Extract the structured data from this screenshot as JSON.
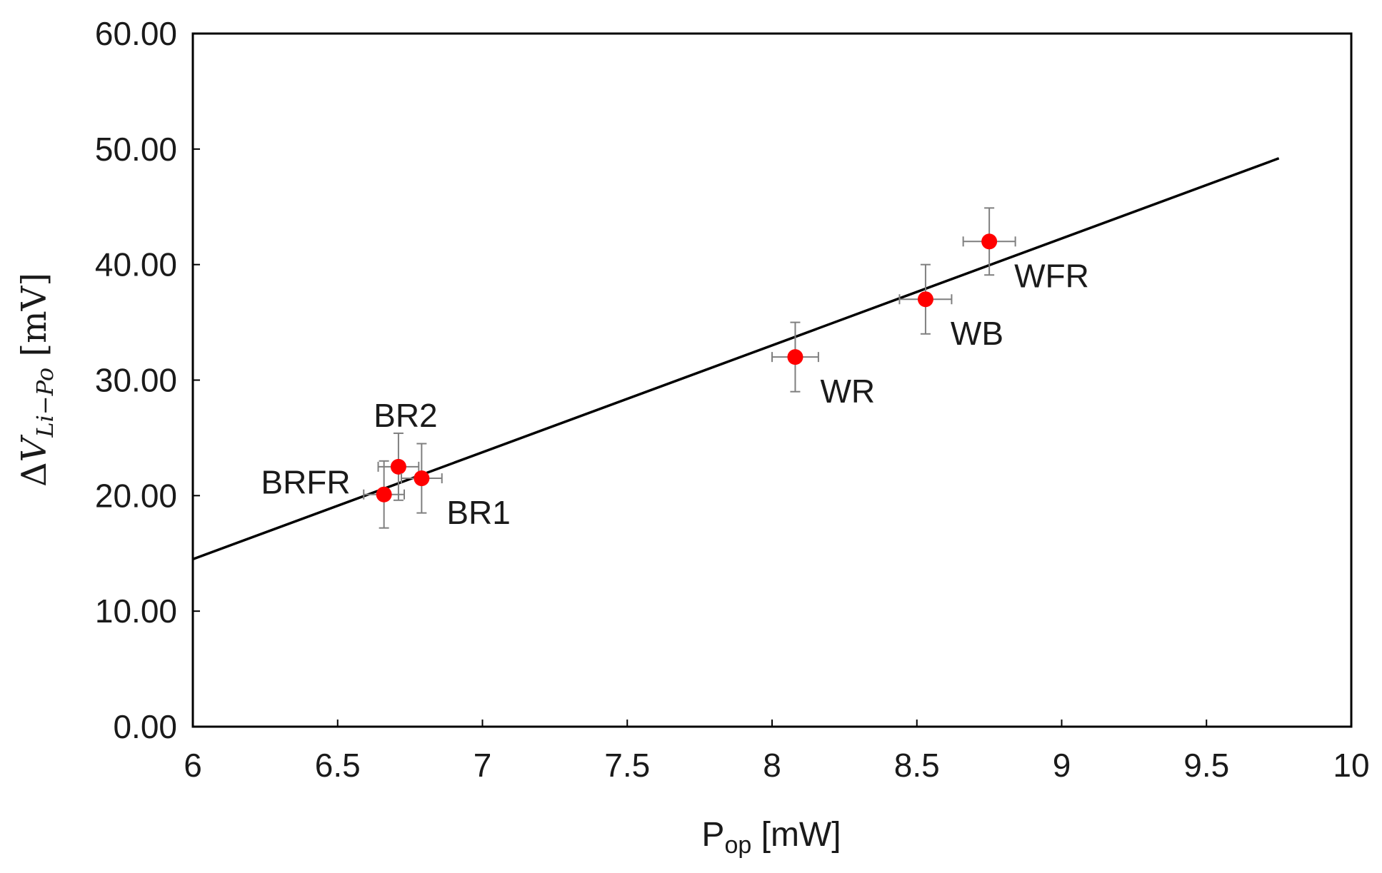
{
  "chart_data": {
    "type": "scatter",
    "title": "",
    "xlabel": {
      "main": "P",
      "sub": "op",
      "unit": " [mW]"
    },
    "ylabel": {
      "delta": "Δ",
      "var": "V",
      "sub": "Li−Po",
      "unit": " [mV]"
    },
    "xlim": [
      6,
      10
    ],
    "ylim": [
      0,
      60
    ],
    "x_ticks": [
      6,
      6.5,
      7,
      7.5,
      8,
      8.5,
      9,
      9.5,
      10
    ],
    "x_tick_labels": [
      "6",
      "6.5",
      "7",
      "7.5",
      "8",
      "8.5",
      "9",
      "9.5",
      "10"
    ],
    "y_ticks": [
      0,
      10,
      20,
      30,
      40,
      50,
      60
    ],
    "y_tick_labels": [
      "0.00",
      "10.00",
      "20.00",
      "30.00",
      "40.00",
      "50.00",
      "60.00"
    ],
    "grid": false,
    "points": [
      {
        "name": "BRFR",
        "x": 6.66,
        "y": 20.1,
        "xerr": 0.07,
        "yerr": 2.9,
        "label_pos": "left"
      },
      {
        "name": "BR2",
        "x": 6.71,
        "y": 22.5,
        "xerr": 0.07,
        "yerr": 2.9,
        "label_pos": "above"
      },
      {
        "name": "BR1",
        "x": 6.79,
        "y": 21.5,
        "xerr": 0.07,
        "yerr": 3.0,
        "label_pos": "below-right"
      },
      {
        "name": "WR",
        "x": 8.08,
        "y": 32.0,
        "xerr": 0.08,
        "yerr": 3.0,
        "label_pos": "below-right"
      },
      {
        "name": "WB",
        "x": 8.53,
        "y": 37.0,
        "xerr": 0.09,
        "yerr": 3.0,
        "label_pos": "below-right"
      },
      {
        "name": "WFR",
        "x": 8.75,
        "y": 42.0,
        "xerr": 0.09,
        "yerr": 2.9,
        "label_pos": "below-right"
      }
    ],
    "fit_line": {
      "x": [
        6,
        9.75
      ],
      "y": [
        14.5,
        49.2
      ]
    },
    "colors": {
      "point": "#ff0000",
      "errorbar": "#7f7f7f",
      "line": "#000000",
      "axis": "#000000",
      "text": "#1a1a1a"
    }
  }
}
